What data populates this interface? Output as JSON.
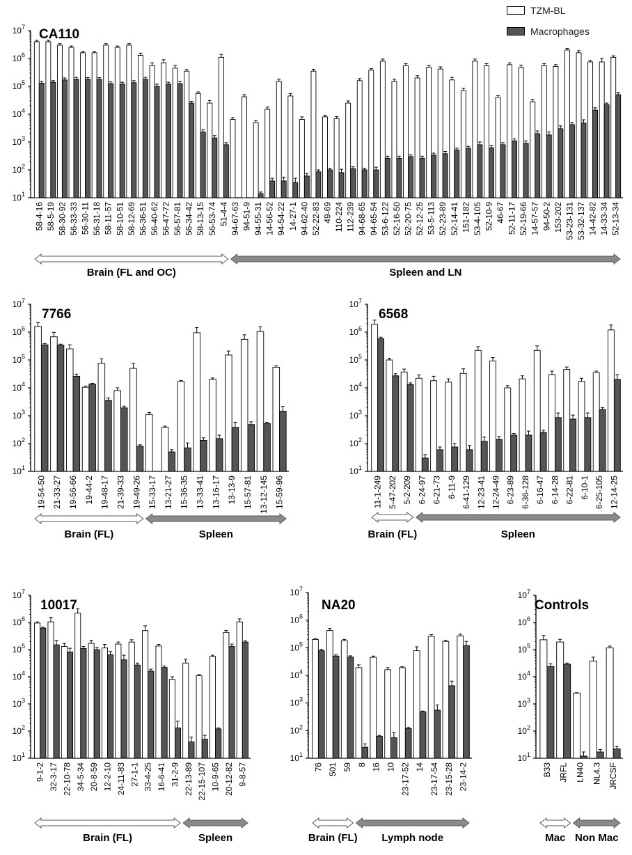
{
  "legend": {
    "tzm_label": "TZM-BL",
    "mac_label": "Macrophages",
    "tzm_color": "#ffffff",
    "mac_color": "#555555"
  },
  "chart_data": [
    {
      "id": "CA110",
      "type": "bar",
      "title": "CA110",
      "y_scale": "log",
      "ylim": [
        10,
        10000000
      ],
      "y_ticks": [
        "10^1",
        "10^2",
        "10^3",
        "10^4",
        "10^5",
        "10^6",
        "10^7"
      ],
      "categories": [
        "58-4-16",
        "58-5-19",
        "58-30-92",
        "56-33-33",
        "56-30-11",
        "56-31-18",
        "58-11-57",
        "58-10-51",
        "58-12-69",
        "56-36-51",
        "56-40-62",
        "56-47-72",
        "56-57-81",
        "56-34-42",
        "58-13-15",
        "56-53-74",
        "51-4-4",
        "94-67-63",
        "94-51-9",
        "94-55-31",
        "14-56-52",
        "94-54-22",
        "14-27-1",
        "94-62-40",
        "52-22-83",
        "49-69",
        "110-224",
        "112-239",
        "94-68-65",
        "94-65-54",
        "53-6-122",
        "52-16-50",
        "52-20-75",
        "52-12-25",
        "53-5-113",
        "52-23-89",
        "52-14-41",
        "151-182",
        "53-4-105",
        "52-10-9",
        "46-67",
        "52-11-17",
        "52-19-66",
        "14-57-57",
        "94-50-2",
        "153-202",
        "53-23-131",
        "53-32-137",
        "14-42-82",
        "14-33-34",
        "52-13-34"
      ],
      "series": [
        {
          "name": "TZM-BL",
          "values": [
            4000000,
            4000000,
            3000000,
            2500000,
            1600000,
            1600000,
            3000000,
            2500000,
            3000000,
            1300000,
            550000,
            700000,
            450000,
            350000,
            55000,
            25000,
            1100000,
            6500,
            42000,
            5000,
            15000,
            150000,
            45000,
            6500,
            350000,
            8000,
            7000,
            25000,
            160000,
            380000,
            800000,
            150000,
            550000,
            200000,
            480000,
            420000,
            170000,
            70000,
            800000,
            550000,
            40000,
            600000,
            480000,
            28000,
            550000,
            520000,
            2000000,
            1600000,
            750000,
            750000,
            1100000
          ],
          "errors": [
            500000,
            500000,
            400000,
            300000,
            200000,
            200000,
            400000,
            300000,
            400000,
            250000,
            150000,
            200000,
            120000,
            50000,
            8000,
            6000,
            300000,
            1000,
            8000,
            800,
            3000,
            30000,
            10000,
            1500,
            60000,
            1200,
            1200,
            5000,
            30000,
            50000,
            150000,
            30000,
            100000,
            40000,
            80000,
            80000,
            40000,
            15000,
            150000,
            100000,
            6000,
            100000,
            100000,
            6000,
            100000,
            80000,
            300000,
            300000,
            100000,
            250000,
            150000
          ]
        },
        {
          "name": "Macrophages",
          "values": [
            130000,
            140000,
            170000,
            180000,
            180000,
            180000,
            125000,
            120000,
            135000,
            180000,
            100000,
            120000,
            125000,
            25000,
            2300,
            1400,
            800,
            9,
            10,
            14,
            40,
            40,
            35,
            60,
            85,
            100,
            80,
            110,
            100,
            100,
            260,
            260,
            300,
            260,
            340,
            380,
            520,
            600,
            800,
            620,
            800,
            1100,
            900,
            2000,
            1800,
            3000,
            4200,
            4800,
            14000,
            22000,
            50000
          ],
          "errors": [
            20000,
            20000,
            30000,
            30000,
            25000,
            25000,
            20000,
            20000,
            25000,
            30000,
            20000,
            20000,
            25000,
            4000,
            500,
            300,
            150,
            0,
            0,
            2,
            10,
            15,
            15,
            15,
            15,
            15,
            25,
            20,
            15,
            25,
            50,
            50,
            50,
            50,
            60,
            80,
            80,
            100,
            200,
            150,
            150,
            200,
            200,
            500,
            500,
            800,
            800,
            1500,
            3000,
            3000,
            10000
          ]
        }
      ],
      "groups": [
        {
          "label": "Brain (FL and OC)",
          "from": 0,
          "to": 16
        },
        {
          "label": "Spleen and LN",
          "from": 17,
          "to": 50
        }
      ]
    },
    {
      "id": "7766",
      "type": "bar",
      "title": "7766",
      "y_scale": "log",
      "ylim": [
        10,
        10000000
      ],
      "y_ticks": [
        "10^1",
        "10^2",
        "10^3",
        "10^4",
        "10^5",
        "10^6",
        "10^7"
      ],
      "categories": [
        "19-54-50",
        "21-33-27",
        "19-56-66",
        "19-44-2",
        "19-48-17",
        "21-39-33",
        "19-49-26",
        "15-33-17",
        "13-21-27",
        "15-36-35",
        "13-33-41",
        "13-16-17",
        "13-13-9",
        "15-57-81",
        "13-12-145",
        "15-59-96"
      ],
      "series": [
        {
          "name": "TZM-BL",
          "values": [
            1600000,
            680000,
            250000,
            10500,
            75000,
            8000,
            50000,
            1100,
            380,
            17000,
            950000,
            20000,
            150000,
            550000,
            1050000,
            55000
          ],
          "errors": [
            600000,
            300000,
            100000,
            1000,
            35000,
            2000,
            25000,
            200,
            40,
            1500,
            500000,
            2500,
            60000,
            250000,
            500000,
            7000
          ]
        },
        {
          "name": "Macrophages",
          "values": [
            350000,
            340000,
            26000,
            13500,
            3500,
            1900,
            80,
            null,
            50,
            70,
            130,
            150,
            380,
            480,
            520,
            1450
          ],
          "errors": [
            40000,
            30000,
            5000,
            1000,
            800,
            300,
            10,
            null,
            10,
            35,
            30,
            50,
            200,
            120,
            60,
            700
          ]
        }
      ],
      "groups": [
        {
          "label": "Brain (FL)",
          "from": 0,
          "to": 6
        },
        {
          "label": "Spleen",
          "from": 7,
          "to": 15
        }
      ]
    },
    {
      "id": "6568",
      "type": "bar",
      "title": "6568",
      "y_scale": "log",
      "ylim": [
        10,
        10000000
      ],
      "y_ticks": [
        "10^1",
        "10^2",
        "10^3",
        "10^4",
        "10^5",
        "10^6",
        "10^7"
      ],
      "categories": [
        "11-1-249",
        "5-47-202",
        "5-2-209",
        "6-24-97",
        "6-21-73",
        "6-11-9",
        "6-41-129",
        "12-23-41",
        "12-24-49",
        "6-23-89",
        "6-36-128",
        "6-16-47",
        "6-14-28",
        "6-22-81",
        "6-10-1",
        "6-25-105",
        "12-14-25"
      ],
      "series": [
        {
          "name": "TZM-BL",
          "values": [
            1900000,
            100000,
            37000,
            22000,
            18000,
            16000,
            33000,
            220000,
            92000,
            10000,
            21000,
            220000,
            30000,
            46000,
            17000,
            35000,
            1200000
          ],
          "errors": [
            800000,
            15000,
            10000,
            7000,
            8000,
            5000,
            15000,
            80000,
            30000,
            2000,
            6000,
            100000,
            10000,
            10000,
            5000,
            5000,
            600000
          ]
        },
        {
          "name": "Macrophages",
          "values": [
            580000,
            27000,
            13000,
            30,
            60,
            75,
            60,
            120,
            140,
            200,
            200,
            250,
            850,
            750,
            850,
            1650,
            20000
          ],
          "errors": [
            80000,
            5000,
            2000,
            10,
            15,
            25,
            25,
            50,
            40,
            30,
            80,
            50,
            400,
            300,
            400,
            300,
            10000
          ]
        }
      ],
      "groups": [
        {
          "label": "Brain (FL)",
          "from": 0,
          "to": 2
        },
        {
          "label": "Spleen",
          "from": 3,
          "to": 16
        }
      ]
    },
    {
      "id": "10017",
      "type": "bar",
      "title": "10017",
      "y_scale": "log",
      "ylim": [
        10,
        10000000
      ],
      "y_ticks": [
        "10^1",
        "10^2",
        "10^3",
        "10^4",
        "10^5",
        "10^6",
        "10^7"
      ],
      "categories": [
        "9-1-2",
        "32-3-17",
        "22-10-78",
        "34-5-34",
        "20-8-59",
        "12-2-10",
        "24-11-83",
        "27-1-1",
        "33-4-25",
        "16-6-41",
        "31-2-9",
        "22-13-89",
        "22-15-107",
        "10-9-65",
        "20-12-82",
        "9-8-57"
      ],
      "series": [
        {
          "name": "TZM-BL",
          "values": [
            950000,
            1050000,
            130000,
            2200000,
            170000,
            115000,
            160000,
            190000,
            500000,
            135000,
            8000,
            32000,
            11000,
            56000,
            430000,
            1050000
          ],
          "errors": [
            100000,
            500000,
            40000,
            1000000,
            50000,
            40000,
            30000,
            40000,
            250000,
            20000,
            2000,
            12000,
            1000,
            6000,
            80000,
            300000
          ],
          "label_note": ""
        },
        {
          "name": "Macrophages",
          "values": [
            620000,
            150000,
            82000,
            110000,
            100000,
            65000,
            42000,
            27000,
            16000,
            22000,
            130,
            40,
            50,
            120,
            130000,
            190000
          ],
          "errors": [
            50000,
            70000,
            30000,
            20000,
            20000,
            20000,
            20000,
            5000,
            3000,
            3000,
            100,
            20,
            20,
            10,
            30000,
            20000
          ]
        }
      ],
      "groups": [
        {
          "label": "Brain (FL)",
          "from": 0,
          "to": 10
        },
        {
          "label": "Spleen",
          "from": 11,
          "to": 15
        }
      ]
    },
    {
      "id": "NA20",
      "type": "bar",
      "title": "NA20",
      "y_scale": "log",
      "ylim": [
        10,
        10000000
      ],
      "y_ticks": [
        "10^1",
        "10^2",
        "10^3",
        "10^4",
        "10^5",
        "10^6",
        "10^7"
      ],
      "categories": [
        "76",
        "501",
        "59",
        "8",
        "16",
        "10",
        "23-17-52",
        "14",
        "23-17-54",
        "23-15-28",
        "23-14-2"
      ],
      "series": [
        {
          "name": "TZM-BL",
          "values": [
            200000,
            420000,
            180000,
            19000,
            45000,
            16000,
            19000,
            78000,
            260000,
            170000,
            270000
          ],
          "errors": [
            15000,
            80000,
            20000,
            5000,
            5000,
            3000,
            1500,
            30000,
            40000,
            15000,
            40000
          ]
        },
        {
          "name": "Macrophages",
          "values": [
            78000,
            50000,
            46000,
            25,
            62,
            55,
            120,
            480,
            550,
            4200,
            120000
          ],
          "errors": [
            10000,
            5000,
            5000,
            8,
            5,
            30,
            10,
            30,
            300,
            2000,
            50000
          ]
        }
      ],
      "groups": [
        {
          "label": "Brain (FL)",
          "from": 0,
          "to": 2
        },
        {
          "label": "Lymph node",
          "from": 3,
          "to": 10
        }
      ]
    },
    {
      "id": "Controls",
      "type": "bar",
      "title": "Controls",
      "y_scale": "log",
      "ylim": [
        10,
        10000000
      ],
      "y_ticks": [
        "10^1",
        "10^2",
        "10^3",
        "10^4",
        "10^5",
        "10^6",
        "10^7"
      ],
      "categories": [
        "B33",
        "JRFL",
        "LN40",
        "NL4.3",
        "JRCSF"
      ],
      "series": [
        {
          "name": "TZM-BL",
          "values": [
            230000,
            190000,
            2500,
            38000,
            115000
          ],
          "errors": [
            100000,
            50000,
            100,
            15000,
            20000
          ]
        },
        {
          "name": "Macrophages",
          "values": [
            24000,
            29000,
            12,
            17,
            22
          ],
          "errors": [
            6000,
            3000,
            5,
            4,
            5
          ]
        }
      ],
      "groups": [
        {
          "label": "Mac",
          "from": 0,
          "to": 1
        },
        {
          "label": "Non Mac",
          "from": 2,
          "to": 4
        }
      ]
    }
  ]
}
